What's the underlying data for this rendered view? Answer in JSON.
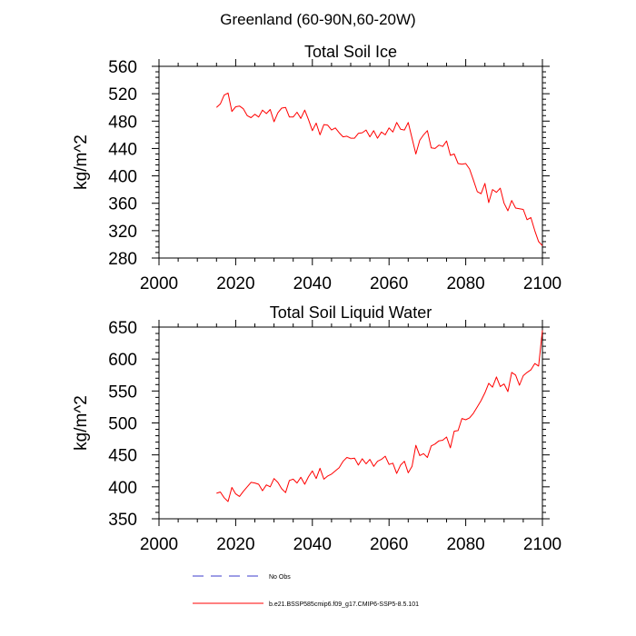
{
  "figure": {
    "title": "Greenland (60-90N,60-20W)"
  },
  "colors": {
    "model_line": "#ff0000",
    "obs_line": "#3b3bcc",
    "axes": "#000000",
    "background": "#ffffff"
  },
  "legend": {
    "placement": "bottom",
    "entries": [
      {
        "label": "No Obs",
        "style": "dashed",
        "color": "#3b3bcc"
      },
      {
        "label": "b.e21.BSSP585cmip6.f09_g17.CMIP6-SSP5-8.5.101",
        "style": "solid",
        "color": "#ff0000"
      }
    ]
  },
  "chart_data": [
    {
      "type": "line",
      "title": "Total Soil Ice",
      "xlabel": "",
      "ylabel": "kg/m^2",
      "xlim": [
        2000,
        2100
      ],
      "ylim": [
        280,
        560
      ],
      "xticks": [
        2000,
        2020,
        2040,
        2060,
        2080,
        2100
      ],
      "yticks": [
        280,
        320,
        360,
        400,
        440,
        480,
        520,
        560
      ],
      "grid": false,
      "series": [
        {
          "name": "b.e21.BSSP585cmip6.f09_g17.CMIP6-SSP5-8.5.101",
          "x": [
            2015,
            2016,
            2017,
            2018,
            2019,
            2020,
            2021,
            2022,
            2023,
            2024,
            2025,
            2026,
            2027,
            2028,
            2029,
            2030,
            2031,
            2032,
            2033,
            2034,
            2035,
            2036,
            2037,
            2038,
            2039,
            2040,
            2041,
            2042,
            2043,
            2044,
            2045,
            2046,
            2047,
            2048,
            2049,
            2050,
            2051,
            2052,
            2053,
            2054,
            2055,
            2056,
            2057,
            2058,
            2059,
            2060,
            2061,
            2062,
            2063,
            2064,
            2065,
            2066,
            2067,
            2068,
            2069,
            2070,
            2071,
            2072,
            2073,
            2074,
            2075,
            2076,
            2077,
            2078,
            2079,
            2080,
            2081,
            2082,
            2083,
            2084,
            2085,
            2086,
            2087,
            2088,
            2089,
            2090,
            2091,
            2092,
            2093,
            2094,
            2095,
            2096,
            2097,
            2098,
            2099,
            2100
          ],
          "y": [
            500,
            505,
            518,
            521,
            494,
            501,
            502,
            498,
            488,
            485,
            490,
            486,
            496,
            491,
            497,
            479,
            492,
            499,
            500,
            486,
            486,
            493,
            484,
            496,
            482,
            466,
            477,
            460,
            475,
            474,
            467,
            470,
            463,
            457,
            458,
            455,
            455,
            462,
            463,
            467,
            457,
            466,
            455,
            464,
            460,
            470,
            464,
            478,
            468,
            467,
            478,
            455,
            432,
            452,
            460,
            466,
            441,
            440,
            445,
            443,
            451,
            430,
            432,
            418,
            417,
            418,
            410,
            394,
            377,
            374,
            389,
            361,
            380,
            376,
            382,
            360,
            349,
            364,
            353,
            352,
            351,
            336,
            339,
            320,
            304,
            298
          ]
        }
      ]
    },
    {
      "type": "line",
      "title": "Total Soil Liquid Water",
      "xlabel": "",
      "ylabel": "kg/m^2",
      "xlim": [
        2000,
        2100
      ],
      "ylim": [
        350,
        650
      ],
      "xticks": [
        2000,
        2020,
        2040,
        2060,
        2080,
        2100
      ],
      "yticks": [
        350,
        400,
        450,
        500,
        550,
        600,
        650
      ],
      "grid": false,
      "series": [
        {
          "name": "b.e21.BSSP585cmip6.f09_g17.CMIP6-SSP5-8.5.101",
          "x": [
            2015,
            2016,
            2017,
            2018,
            2019,
            2020,
            2021,
            2022,
            2023,
            2024,
            2025,
            2026,
            2027,
            2028,
            2029,
            2030,
            2031,
            2032,
            2033,
            2034,
            2035,
            2036,
            2037,
            2038,
            2039,
            2040,
            2041,
            2042,
            2043,
            2044,
            2045,
            2046,
            2047,
            2048,
            2049,
            2050,
            2051,
            2052,
            2053,
            2054,
            2055,
            2056,
            2057,
            2058,
            2059,
            2060,
            2061,
            2062,
            2063,
            2064,
            2065,
            2066,
            2067,
            2068,
            2069,
            2070,
            2071,
            2072,
            2073,
            2074,
            2075,
            2076,
            2077,
            2078,
            2079,
            2080,
            2081,
            2082,
            2083,
            2084,
            2085,
            2086,
            2087,
            2088,
            2089,
            2090,
            2091,
            2092,
            2093,
            2094,
            2095,
            2096,
            2097,
            2098,
            2099,
            2100
          ],
          "y": [
            390,
            392,
            383,
            377,
            399,
            389,
            385,
            393,
            400,
            407,
            406,
            404,
            394,
            403,
            400,
            413,
            407,
            397,
            391,
            410,
            412,
            406,
            415,
            404,
            416,
            425,
            413,
            429,
            412,
            417,
            420,
            425,
            430,
            440,
            446,
            444,
            445,
            434,
            444,
            436,
            443,
            432,
            440,
            443,
            448,
            435,
            437,
            421,
            434,
            440,
            422,
            432,
            465,
            449,
            452,
            446,
            464,
            467,
            472,
            473,
            478,
            461,
            487,
            488,
            507,
            505,
            508,
            515,
            525,
            535,
            547,
            562,
            556,
            572,
            557,
            561,
            549,
            579,
            575,
            559,
            574,
            579,
            583,
            593,
            589,
            645
          ]
        }
      ]
    }
  ]
}
